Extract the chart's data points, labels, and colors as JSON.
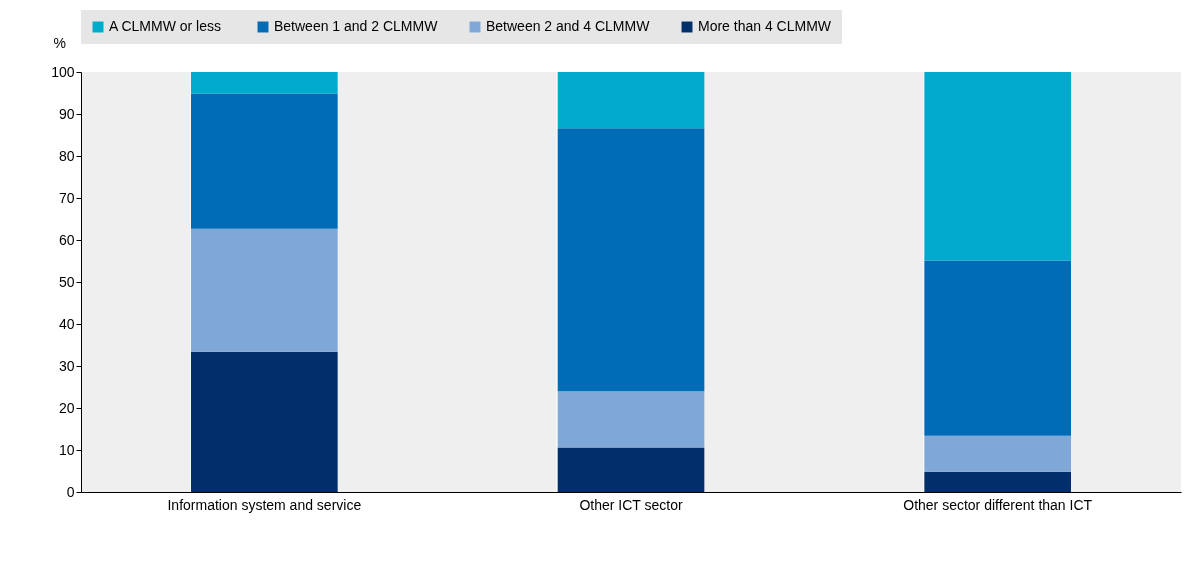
{
  "chart_data": {
    "type": "bar",
    "stacked": true,
    "categories": [
      "Information system and service",
      "Other ICT sector",
      "Other sector different than ICT"
    ],
    "series": [
      {
        "name": "More than 4 CLMMW",
        "color": "#002f6c",
        "values": [
          33.4,
          10.6,
          4.8
        ]
      },
      {
        "name": "Between 2 and 4 CLMMW",
        "color": "#7fa8d9",
        "values": [
          29.3,
          13.4,
          8.6
        ]
      },
      {
        "name": "Between 1 and 2 CLMMW",
        "color": "#006bb6",
        "values": [
          32.2,
          62.6,
          41.7
        ]
      },
      {
        "name": "A  CLMMW or less",
        "color": "#00aacc",
        "values": [
          5.1,
          13.4,
          44.9
        ]
      }
    ],
    "ylabel": "%",
    "ylim": [
      0,
      100
    ],
    "yticks": [
      0,
      10,
      20,
      30,
      40,
      50,
      60,
      70,
      80,
      90,
      100
    ],
    "grid": "x",
    "legend": "top"
  }
}
